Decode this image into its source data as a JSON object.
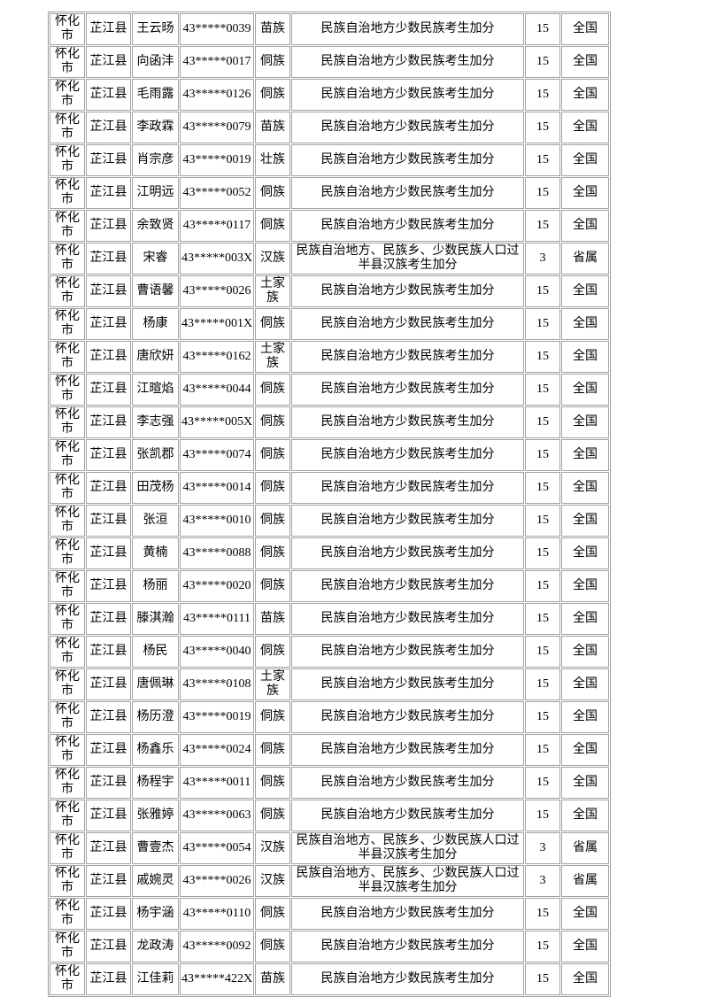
{
  "page": {
    "background_color": "#ffffff",
    "text_color": "#000000",
    "grid_border_color": "#a3a3a3"
  },
  "table": {
    "rows": [
      {
        "city": "怀化市",
        "county": "芷江县",
        "name": "王云旸",
        "id": "43*****0039",
        "ethnicity": "苗族",
        "policy": "民族自治地方少数民族考生加分",
        "points": "15",
        "scope": "全国"
      },
      {
        "city": "怀化市",
        "county": "芷江县",
        "name": "向函沣",
        "id": "43*****0017",
        "ethnicity": "侗族",
        "policy": "民族自治地方少数民族考生加分",
        "points": "15",
        "scope": "全国"
      },
      {
        "city": "怀化市",
        "county": "芷江县",
        "name": "毛雨露",
        "id": "43*****0126",
        "ethnicity": "侗族",
        "policy": "民族自治地方少数民族考生加分",
        "points": "15",
        "scope": "全国"
      },
      {
        "city": "怀化市",
        "county": "芷江县",
        "name": "李政霖",
        "id": "43*****0079",
        "ethnicity": "苗族",
        "policy": "民族自治地方少数民族考生加分",
        "points": "15",
        "scope": "全国"
      },
      {
        "city": "怀化市",
        "county": "芷江县",
        "name": "肖宗彦",
        "id": "43*****0019",
        "ethnicity": "壮族",
        "policy": "民族自治地方少数民族考生加分",
        "points": "15",
        "scope": "全国"
      },
      {
        "city": "怀化市",
        "county": "芷江县",
        "name": "江明远",
        "id": "43*****0052",
        "ethnicity": "侗族",
        "policy": "民族自治地方少数民族考生加分",
        "points": "15",
        "scope": "全国"
      },
      {
        "city": "怀化市",
        "county": "芷江县",
        "name": "余致贤",
        "id": "43*****0117",
        "ethnicity": "侗族",
        "policy": "民族自治地方少数民族考生加分",
        "points": "15",
        "scope": "全国"
      },
      {
        "city": "怀化市",
        "county": "芷江县",
        "name": "宋睿",
        "id": "43*****003X",
        "ethnicity": "汉族",
        "policy": "民族自治地方、民族乡、少数民族人口过半县汉族考生加分",
        "points": "3",
        "scope": "省属"
      },
      {
        "city": "怀化市",
        "county": "芷江县",
        "name": "曹语馨",
        "id": "43*****0026",
        "ethnicity": "土家族",
        "policy": "民族自治地方少数民族考生加分",
        "points": "15",
        "scope": "全国"
      },
      {
        "city": "怀化市",
        "county": "芷江县",
        "name": "杨康",
        "id": "43*****001X",
        "ethnicity": "侗族",
        "policy": "民族自治地方少数民族考生加分",
        "points": "15",
        "scope": "全国"
      },
      {
        "city": "怀化市",
        "county": "芷江县",
        "name": "唐欣妍",
        "id": "43*****0162",
        "ethnicity": "土家族",
        "policy": "民族自治地方少数民族考生加分",
        "points": "15",
        "scope": "全国"
      },
      {
        "city": "怀化市",
        "county": "芷江县",
        "name": "江暄焰",
        "id": "43*****0044",
        "ethnicity": "侗族",
        "policy": "民族自治地方少数民族考生加分",
        "points": "15",
        "scope": "全国"
      },
      {
        "city": "怀化市",
        "county": "芷江县",
        "name": "李志强",
        "id": "43*****005X",
        "ethnicity": "侗族",
        "policy": "民族自治地方少数民族考生加分",
        "points": "15",
        "scope": "全国"
      },
      {
        "city": "怀化市",
        "county": "芷江县",
        "name": "张凯郡",
        "id": "43*****0074",
        "ethnicity": "侗族",
        "policy": "民族自治地方少数民族考生加分",
        "points": "15",
        "scope": "全国"
      },
      {
        "city": "怀化市",
        "county": "芷江县",
        "name": "田茂杨",
        "id": "43*****0014",
        "ethnicity": "侗族",
        "policy": "民族自治地方少数民族考生加分",
        "points": "15",
        "scope": "全国"
      },
      {
        "city": "怀化市",
        "county": "芷江县",
        "name": "张洹",
        "id": "43*****0010",
        "ethnicity": "侗族",
        "policy": "民族自治地方少数民族考生加分",
        "points": "15",
        "scope": "全国"
      },
      {
        "city": "怀化市",
        "county": "芷江县",
        "name": "黄楠",
        "id": "43*****0088",
        "ethnicity": "侗族",
        "policy": "民族自治地方少数民族考生加分",
        "points": "15",
        "scope": "全国"
      },
      {
        "city": "怀化市",
        "county": "芷江县",
        "name": "杨丽",
        "id": "43*****0020",
        "ethnicity": "侗族",
        "policy": "民族自治地方少数民族考生加分",
        "points": "15",
        "scope": "全国"
      },
      {
        "city": "怀化市",
        "county": "芷江县",
        "name": "滕淇瀚",
        "id": "43*****0111",
        "ethnicity": "苗族",
        "policy": "民族自治地方少数民族考生加分",
        "points": "15",
        "scope": "全国"
      },
      {
        "city": "怀化市",
        "county": "芷江县",
        "name": "杨民",
        "id": "43*****0040",
        "ethnicity": "侗族",
        "policy": "民族自治地方少数民族考生加分",
        "points": "15",
        "scope": "全国"
      },
      {
        "city": "怀化市",
        "county": "芷江县",
        "name": "唐佩琳",
        "id": "43*****0108",
        "ethnicity": "土家族",
        "policy": "民族自治地方少数民族考生加分",
        "points": "15",
        "scope": "全国"
      },
      {
        "city": "怀化市",
        "county": "芷江县",
        "name": "杨历澄",
        "id": "43*****0019",
        "ethnicity": "侗族",
        "policy": "民族自治地方少数民族考生加分",
        "points": "15",
        "scope": "全国"
      },
      {
        "city": "怀化市",
        "county": "芷江县",
        "name": "杨鑫乐",
        "id": "43*****0024",
        "ethnicity": "侗族",
        "policy": "民族自治地方少数民族考生加分",
        "points": "15",
        "scope": "全国"
      },
      {
        "city": "怀化市",
        "county": "芷江县",
        "name": "杨程宇",
        "id": "43*****0011",
        "ethnicity": "侗族",
        "policy": "民族自治地方少数民族考生加分",
        "points": "15",
        "scope": "全国"
      },
      {
        "city": "怀化市",
        "county": "芷江县",
        "name": "张雅婷",
        "id": "43*****0063",
        "ethnicity": "侗族",
        "policy": "民族自治地方少数民族考生加分",
        "points": "15",
        "scope": "全国"
      },
      {
        "city": "怀化市",
        "county": "芷江县",
        "name": "曹壹杰",
        "id": "43*****0054",
        "ethnicity": "汉族",
        "policy": "民族自治地方、民族乡、少数民族人口过半县汉族考生加分",
        "points": "3",
        "scope": "省属"
      },
      {
        "city": "怀化市",
        "county": "芷江县",
        "name": "戚婉灵",
        "id": "43*****0026",
        "ethnicity": "汉族",
        "policy": "民族自治地方、民族乡、少数民族人口过半县汉族考生加分",
        "points": "3",
        "scope": "省属"
      },
      {
        "city": "怀化市",
        "county": "芷江县",
        "name": "杨宇涵",
        "id": "43*****0110",
        "ethnicity": "侗族",
        "policy": "民族自治地方少数民族考生加分",
        "points": "15",
        "scope": "全国"
      },
      {
        "city": "怀化市",
        "county": "芷江县",
        "name": "龙政涛",
        "id": "43*****0092",
        "ethnicity": "侗族",
        "policy": "民族自治地方少数民族考生加分",
        "points": "15",
        "scope": "全国"
      },
      {
        "city": "怀化市",
        "county": "芷江县",
        "name": "江佳莉",
        "id": "43*****422X",
        "ethnicity": "苗族",
        "policy": "民族自治地方少数民族考生加分",
        "points": "15",
        "scope": "全国"
      }
    ]
  }
}
